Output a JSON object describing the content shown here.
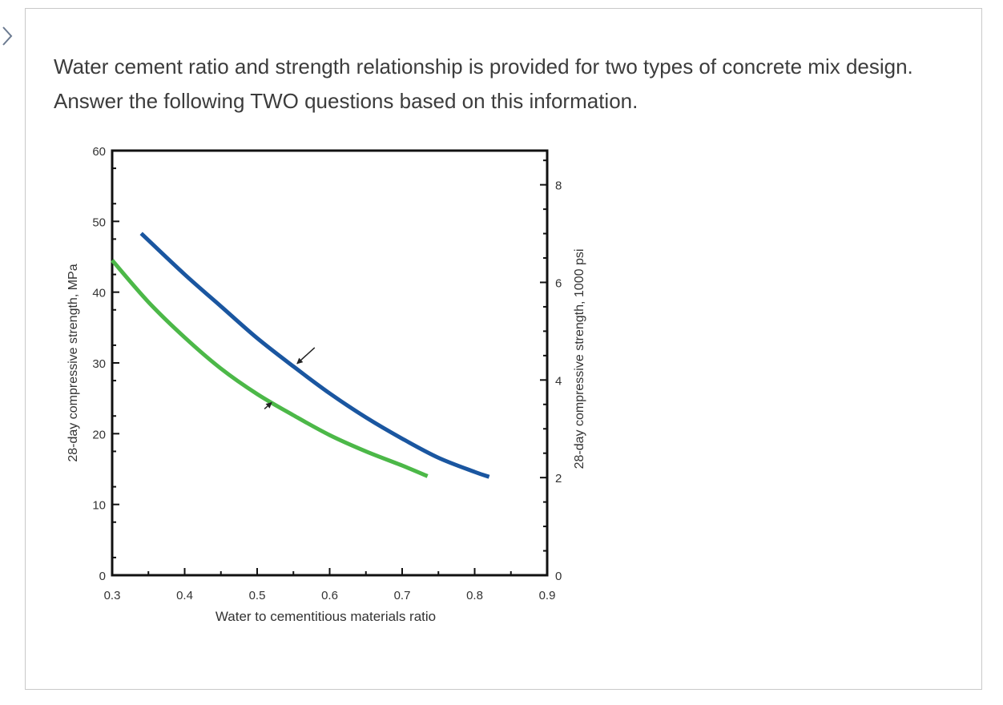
{
  "question": {
    "text": "Water cement ratio and strength relationship is provided for two types of concrete mix design. Answer the following TWO questions based on this information."
  },
  "icons": {
    "nav": "chevron-right-icon"
  },
  "colors": {
    "series_blue": "#1a56a0",
    "series_green": "#4cb848",
    "axis": "#111111",
    "card_border": "#c9c9c9"
  },
  "chart_data": {
    "type": "line",
    "title": "",
    "xlabel": "Water to cementitious materials ratio",
    "ylabel": "28-day compressive strength, MPa",
    "ylabel_right": "28-day compressive strength, 1000 psi",
    "xlim": [
      0.3,
      0.9
    ],
    "ylim": [
      0,
      60
    ],
    "ylim_right": [
      0,
      8.7
    ],
    "x_ticks": [
      "0.3",
      "0.4",
      "0.5",
      "0.6",
      "0.7",
      "0.8",
      "0.9"
    ],
    "y_ticks": [
      "0",
      "10",
      "20",
      "30",
      "40",
      "50",
      "60"
    ],
    "y_ticks_right": [
      "0",
      "2",
      "4",
      "6",
      "8"
    ],
    "grid": false,
    "legend": "none",
    "series": [
      {
        "color": "#1a56a0",
        "x": [
          0.34,
          0.4,
          0.45,
          0.5,
          0.55,
          0.6,
          0.65,
          0.7,
          0.75,
          0.8,
          0.82
        ],
        "y": [
          48.3,
          42.5,
          38.0,
          33.5,
          29.5,
          25.7,
          22.3,
          19.3,
          16.6,
          14.6,
          13.9
        ]
      },
      {
        "color": "#4cb848",
        "x": [
          0.3,
          0.35,
          0.4,
          0.45,
          0.5,
          0.55,
          0.6,
          0.65,
          0.7,
          0.735
        ],
        "y": [
          44.5,
          38.6,
          33.6,
          29.2,
          25.6,
          22.6,
          19.8,
          17.5,
          15.5,
          14.0
        ]
      }
    ],
    "annotations": [
      {
        "type": "arrow",
        "target_series": 0,
        "at_x": 0.555,
        "at_y": 29.9
      },
      {
        "type": "arrow",
        "target_series": 1,
        "at_x": 0.52,
        "at_y": 24.4
      }
    ]
  }
}
